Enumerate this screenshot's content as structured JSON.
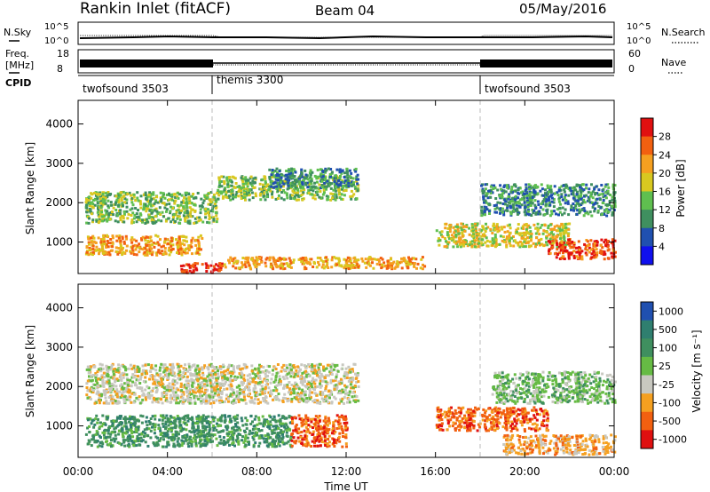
{
  "header": {
    "station": "Rankin Inlet (fitACF)",
    "beam": "Beam 04",
    "date": "05/May/2016"
  },
  "strips": {
    "nsky_label": "N.Sky",
    "nsky_ticks": [
      "10^5",
      "10^0"
    ],
    "nsearch_label": "N.Search",
    "nsearch_ticks": [
      "10^5",
      "10^0"
    ],
    "freq_label_1": "Freq.",
    "freq_label_2": "[MHz]",
    "freq_ticks": [
      "18",
      "8"
    ],
    "nave_label": "Nave",
    "nave_ticks": [
      "60",
      "0"
    ],
    "cpid_label": "CPID",
    "cpid_segments": [
      {
        "name": "twofsound 3503",
        "start": 0,
        "end": 6
      },
      {
        "name": "themis 3300",
        "start": 6,
        "end": 18
      },
      {
        "name": "twofsound 3503",
        "start": 18,
        "end": 24
      }
    ]
  },
  "chart_data": [
    {
      "type": "heatmap",
      "panel": "power",
      "ylabel": "Slant Range [km]",
      "yticks": [
        "1000",
        "2000",
        "3000",
        "4000"
      ],
      "ylim": [
        200,
        4600
      ],
      "xlim": [
        0,
        24
      ],
      "colorbar_label": "Power [dB]",
      "colorbar_ticks": [
        "4",
        "8",
        "12",
        "16",
        "20",
        "24",
        "28"
      ],
      "colorbar_colors": [
        "#1010ee",
        "#2050b0",
        "#3f8f5f",
        "#5fbf4f",
        "#d8c820",
        "#f5a020",
        "#f26010",
        "#e01010"
      ],
      "bands": [
        {
          "x": [
            0.3,
            6.2
          ],
          "y": [
            1500,
            2300
          ],
          "level": 12
        },
        {
          "x": [
            0.3,
            5.5
          ],
          "y": [
            700,
            1200
          ],
          "level": 20
        },
        {
          "x": [
            6.2,
            12.5
          ],
          "y": [
            2100,
            2700
          ],
          "level": 12
        },
        {
          "x": [
            8.5,
            12.5
          ],
          "y": [
            2400,
            2900
          ],
          "level": 8
        },
        {
          "x": [
            4.5,
            6.5
          ],
          "y": [
            250,
            500
          ],
          "level": 28
        },
        {
          "x": [
            6.5,
            15.5
          ],
          "y": [
            350,
            650
          ],
          "level": 20
        },
        {
          "x": [
            16,
            22
          ],
          "y": [
            900,
            1500
          ],
          "level": 16
        },
        {
          "x": [
            21,
            24
          ],
          "y": [
            600,
            1100
          ],
          "level": 26
        },
        {
          "x": [
            18,
            24
          ],
          "y": [
            1700,
            2500
          ],
          "level": 8
        }
      ]
    },
    {
      "type": "heatmap",
      "panel": "velocity",
      "ylabel": "Slant Range [km]",
      "yticks": [
        "1000",
        "2000",
        "3000",
        "4000"
      ],
      "ylim": [
        200,
        4600
      ],
      "xlim": [
        0,
        24
      ],
      "colorbar_label": "Velocity [m s⁻¹]",
      "colorbar_ticks": [
        "1000",
        "500",
        "100",
        "25",
        "-25",
        "-100",
        "-500",
        "-1000"
      ],
      "colorbar_colors": [
        "#2050b0",
        "#2f7f6f",
        "#3f8f5f",
        "#66bb44",
        "#c8c8c0",
        "#f5a020",
        "#f26010",
        "#e01010"
      ],
      "xlabel": "Time UT",
      "xticks": [
        "00:00",
        "04:00",
        "08:00",
        "12:00",
        "16:00",
        "20:00",
        "00:00"
      ],
      "bands": [
        {
          "x": [
            0.3,
            12.5
          ],
          "y": [
            1600,
            2600
          ],
          "level": 4
        },
        {
          "x": [
            0.3,
            9.5
          ],
          "y": [
            500,
            1300
          ],
          "level": 2
        },
        {
          "x": [
            9.5,
            12
          ],
          "y": [
            500,
            1300
          ],
          "level": 6
        },
        {
          "x": [
            16,
            21
          ],
          "y": [
            900,
            1500
          ],
          "level": 6
        },
        {
          "x": [
            19,
            24
          ],
          "y": [
            300,
            800
          ],
          "level": 5
        },
        {
          "x": [
            18.5,
            24
          ],
          "y": [
            1600,
            2400
          ],
          "level": 3
        }
      ]
    }
  ]
}
